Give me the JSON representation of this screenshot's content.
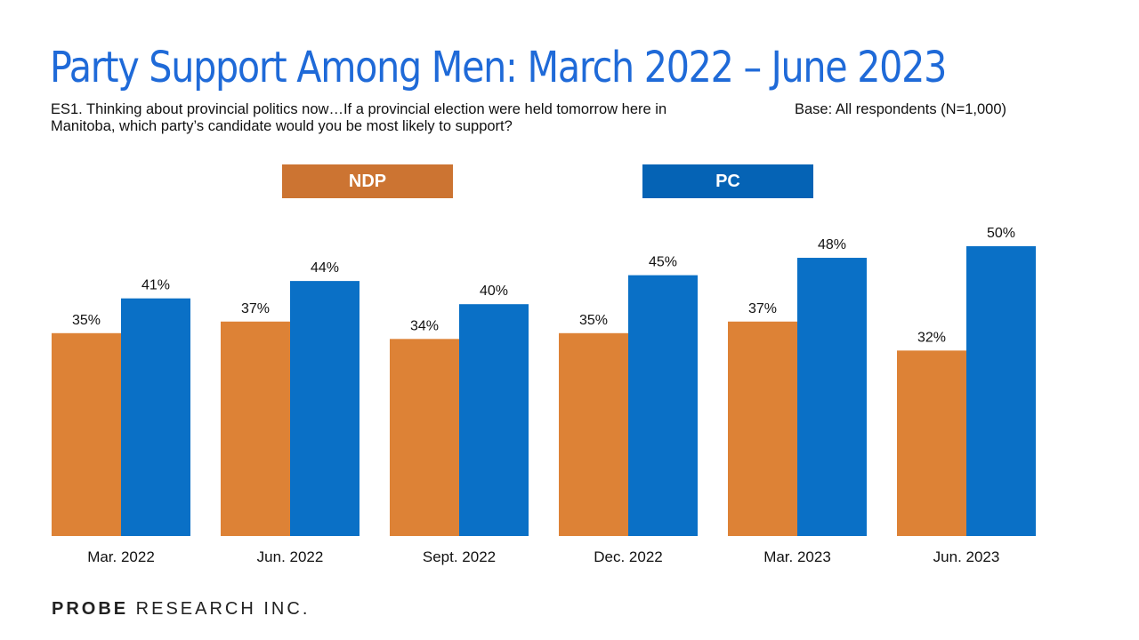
{
  "title": "Party Support Among Men: March 2022 – June 2023",
  "question": "ES1. Thinking about provincial politics now…If a provincial election were held tomorrow here in Manitoba, which party’s candidate would you be most likely to support?",
  "base": "Base: All respondents (N=1,000)",
  "logo": {
    "bold": "PROBE",
    "rest": " RESEARCH INC."
  },
  "colors": {
    "title": "#1f6ad8",
    "ndp_legend": "#cc7432",
    "pc_legend": "#0563b5",
    "ndp": "#dd8236",
    "pc": "#0a70c6"
  },
  "chart_data": {
    "type": "bar",
    "categories": [
      "Mar. 2022",
      "Jun. 2022",
      "Sept. 2022",
      "Dec. 2022",
      "Mar. 2023",
      "Jun. 2023"
    ],
    "series": [
      {
        "name": "NDP",
        "values": [
          35,
          37,
          34,
          35,
          37,
          32
        ]
      },
      {
        "name": "PC",
        "values": [
          41,
          44,
          40,
          45,
          48,
          50
        ]
      }
    ],
    "value_suffix": "%",
    "ylim": [
      0,
      50
    ],
    "grid": false,
    "legend": "top"
  }
}
